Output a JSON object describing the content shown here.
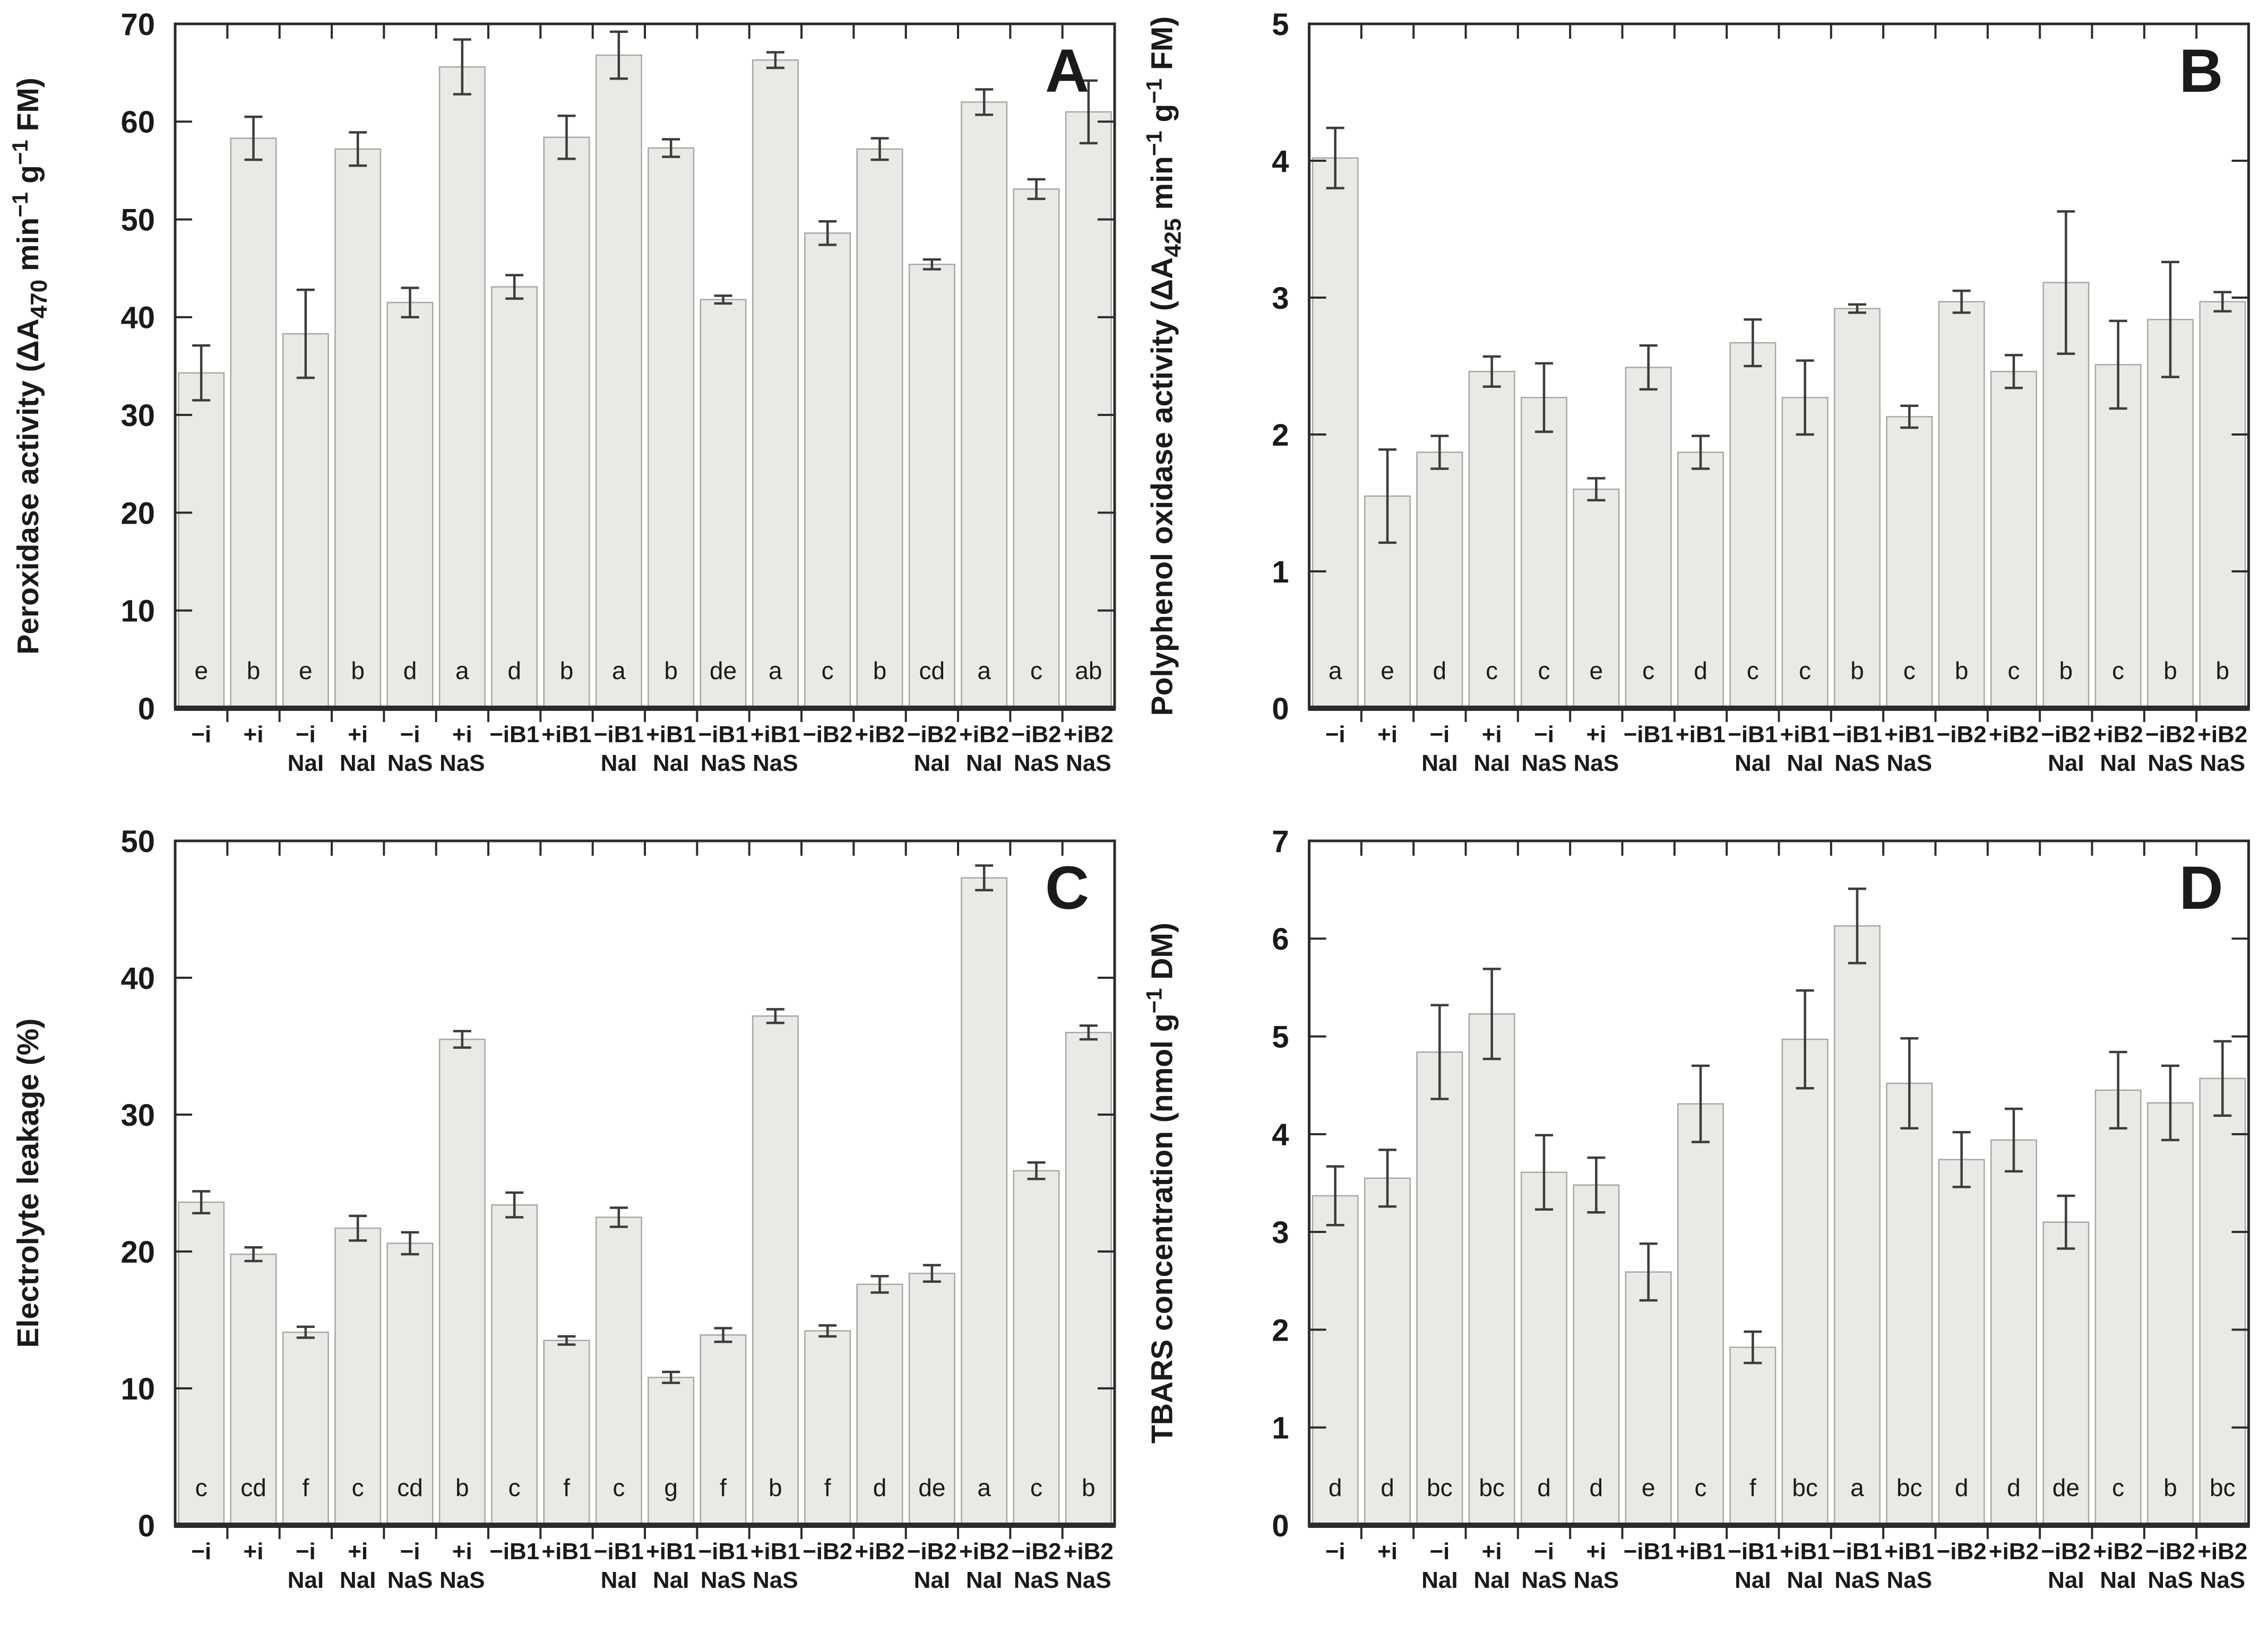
{
  "figure": {
    "background": "#ffffff",
    "bar_fill": "#e9eae6",
    "bar_stroke": "#a6a8a4",
    "axis_color": "#2b2b2b",
    "error_color": "#3c3c3c",
    "text_color": "#1a1a1a"
  },
  "chart_data": [
    {
      "type": "bar",
      "panel_label": "A",
      "ylabel": "Peroxidase activity (ΔA470 min−1 g−1 FM)",
      "ylabel_segments": [
        {
          "t": "Peroxidase activity  ("
        },
        {
          "t": "ΔA"
        },
        {
          "sub": "470"
        },
        {
          "t": " min"
        },
        {
          "sup": "−1"
        },
        {
          "t": " g"
        },
        {
          "sup": "−1"
        },
        {
          "t": " FM)"
        }
      ],
      "ylim": [
        0,
        70
      ],
      "yticks": [
        0,
        10,
        20,
        30,
        40,
        50,
        60,
        70
      ],
      "grid": false,
      "legend": null,
      "categories": [
        "−i",
        "+i",
        "−i NaI",
        "+i NaI",
        "−i NaS",
        "+i NaS",
        "−iB1",
        "+iB1",
        "−iB1 NaI",
        "+iB1 NaI",
        "−iB1 NaS",
        "+iB1 NaS",
        "−iB2",
        "+iB2",
        "−iB2 NaI",
        "+iB2 NaI",
        "−iB2 NaS",
        "+iB2 NaS"
      ],
      "values": [
        34.3,
        58.3,
        38.3,
        57.2,
        41.5,
        65.6,
        43.1,
        58.4,
        66.8,
        57.3,
        41.8,
        66.3,
        48.6,
        57.2,
        45.4,
        62.0,
        53.1,
        61.0
      ],
      "errors": [
        2.8,
        2.2,
        4.5,
        1.7,
        1.5,
        2.8,
        1.2,
        2.2,
        2.4,
        0.9,
        0.4,
        0.8,
        1.2,
        1.1,
        0.5,
        1.3,
        1.0,
        3.2
      ],
      "sig_letters": [
        "e",
        "b",
        "e",
        "b",
        "d",
        "a",
        "d",
        "b",
        "a",
        "b",
        "de",
        "a",
        "c",
        "b",
        "cd",
        "a",
        "c",
        "ab"
      ]
    },
    {
      "type": "bar",
      "panel_label": "B",
      "ylabel": "Polyphenol oxidase activity (ΔA425 min−1 g−1 FM)",
      "ylabel_segments": [
        {
          "t": "Polyphenol oxidase activity  ("
        },
        {
          "t": "ΔA"
        },
        {
          "sub": "425"
        },
        {
          "t": " min"
        },
        {
          "sup": "−1"
        },
        {
          "t": " g"
        },
        {
          "sup": "−1"
        },
        {
          "t": " FM)"
        }
      ],
      "ylim": [
        0,
        5
      ],
      "yticks": [
        0,
        1,
        2,
        3,
        4,
        5
      ],
      "grid": false,
      "legend": null,
      "categories": [
        "−i",
        "+i",
        "−i NaI",
        "+i NaI",
        "−i NaS",
        "+i NaS",
        "−iB1",
        "+iB1",
        "−iB1 NaI",
        "+iB1 NaI",
        "−iB1 NaS",
        "+iB1 NaS",
        "−iB2",
        "+iB2",
        "−iB2 NaI",
        "+iB2 NaI",
        "−iB2 NaS",
        "+iB2 NaS"
      ],
      "values": [
        4.02,
        1.55,
        1.87,
        2.46,
        2.27,
        1.6,
        2.49,
        1.87,
        2.67,
        2.27,
        2.92,
        2.13,
        2.97,
        2.46,
        3.11,
        2.51,
        2.84,
        2.97
      ],
      "errors": [
        0.22,
        0.34,
        0.12,
        0.11,
        0.25,
        0.08,
        0.16,
        0.12,
        0.17,
        0.27,
        0.03,
        0.08,
        0.08,
        0.12,
        0.52,
        0.32,
        0.42,
        0.07
      ],
      "sig_letters": [
        "a",
        "e",
        "d",
        "c",
        "c",
        "e",
        "c",
        "d",
        "c",
        "c",
        "b",
        "c",
        "b",
        "c",
        "b",
        "c",
        "b",
        "b"
      ]
    },
    {
      "type": "bar",
      "panel_label": "C",
      "ylabel": "Electrolyte leakage (%)",
      "ylabel_segments": [
        {
          "t": "Electrolyte leakage  (%)"
        }
      ],
      "ylim": [
        0,
        50
      ],
      "yticks": [
        0,
        10,
        20,
        30,
        40,
        50
      ],
      "grid": false,
      "legend": null,
      "categories": [
        "−i",
        "+i",
        "−i NaI",
        "+i NaI",
        "−i NaS",
        "+i NaS",
        "−iB1",
        "+iB1",
        "−iB1 NaI",
        "+iB1 NaI",
        "−iB1 NaS",
        "+iB1 NaS",
        "−iB2",
        "+iB2",
        "−iB2 NaI",
        "+iB2 NaI",
        "−iB2 NaS",
        "+iB2 NaS"
      ],
      "values": [
        23.6,
        19.8,
        14.1,
        21.7,
        20.6,
        35.5,
        23.4,
        13.5,
        22.5,
        10.8,
        13.9,
        37.2,
        14.2,
        17.6,
        18.4,
        47.3,
        25.9,
        36.0
      ],
      "errors": [
        0.8,
        0.5,
        0.4,
        0.9,
        0.8,
        0.6,
        0.9,
        0.3,
        0.7,
        0.4,
        0.5,
        0.5,
        0.4,
        0.6,
        0.6,
        0.9,
        0.6,
        0.5
      ],
      "sig_letters": [
        "c",
        "cd",
        "f",
        "c",
        "cd",
        "b",
        "c",
        "f",
        "c",
        "g",
        "f",
        "b",
        "f",
        "d",
        "de",
        "a",
        "c",
        "b"
      ]
    },
    {
      "type": "bar",
      "panel_label": "D",
      "ylabel": "TBARS concentration (nmol g−1 DM)",
      "ylabel_segments": [
        {
          "t": "TBARS concentration  (nmol g"
        },
        {
          "sup": "−1"
        },
        {
          "t": " DM)"
        }
      ],
      "ylim": [
        0,
        7
      ],
      "yticks": [
        0,
        1,
        2,
        3,
        4,
        5,
        6,
        7
      ],
      "grid": false,
      "legend": null,
      "categories": [
        "−i",
        "+i",
        "−i NaI",
        "+i NaI",
        "−i NaS",
        "+i NaS",
        "−iB1",
        "+iB1",
        "−iB1 NaI",
        "+iB1 NaI",
        "−iB1 NaS",
        "+iB1 NaS",
        "−iB2",
        "+iB2",
        "−iB2 NaI",
        "+iB2 NaI",
        "−iB2 NaS",
        "+iB2 NaS"
      ],
      "values": [
        3.37,
        3.55,
        4.84,
        5.23,
        3.61,
        3.48,
        2.59,
        4.31,
        1.82,
        4.97,
        6.13,
        4.52,
        3.74,
        3.94,
        3.1,
        4.45,
        4.32,
        4.57
      ],
      "errors": [
        0.3,
        0.29,
        0.48,
        0.46,
        0.38,
        0.28,
        0.29,
        0.39,
        0.16,
        0.5,
        0.38,
        0.46,
        0.28,
        0.32,
        0.27,
        0.39,
        0.38,
        0.38
      ],
      "sig_letters": [
        "d",
        "d",
        "bc",
        "bc",
        "d",
        "d",
        "e",
        "c",
        "f",
        "bc",
        "a",
        "bc",
        "d",
        "d",
        "de",
        "c",
        "b",
        "bc"
      ]
    }
  ]
}
